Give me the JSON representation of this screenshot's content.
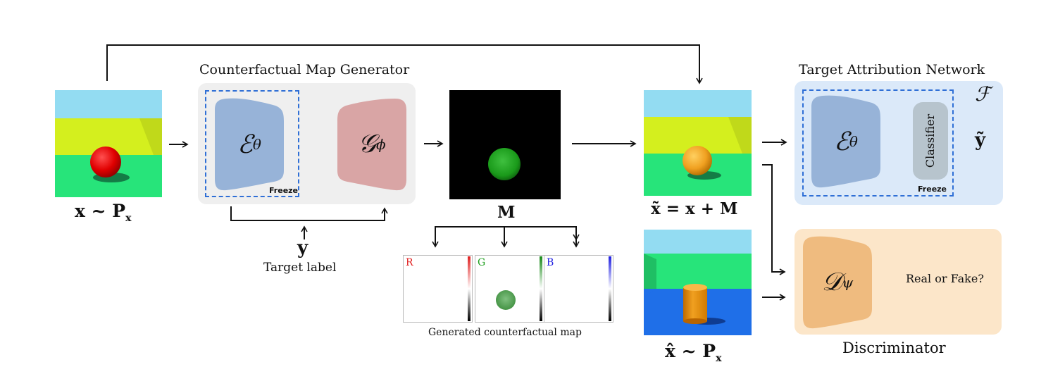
{
  "input": {
    "label": "x ~ P",
    "sub": "x"
  },
  "generator": {
    "title": "Counterfactual Map Generator",
    "encoder": {
      "symbol": "ℰ",
      "sub": "θ"
    },
    "decoder": {
      "symbol": "𝒢",
      "sub": "ϕ"
    },
    "freeze": "Freeze"
  },
  "target": {
    "symbol": "y",
    "label": "Target label"
  },
  "map": {
    "label": "M",
    "channels": [
      {
        "name": "R",
        "color": "#e02020"
      },
      {
        "name": "G",
        "color": "#20a020"
      },
      {
        "name": "B",
        "color": "#2020e0"
      }
    ],
    "caption": "Generated counterfactual map"
  },
  "counterfactual": {
    "label": "x̃ = x + M"
  },
  "real": {
    "label": "x̂ ~ P",
    "sub": "x"
  },
  "tan": {
    "title": "Target Attribution Network",
    "symbol": "ℱ",
    "encoder": {
      "symbol": "ℰ",
      "sub": "θ"
    },
    "classifier": "Classifier",
    "freeze": "Freeze",
    "output": "ỹ"
  },
  "disc": {
    "symbol": "𝒟",
    "sub": "ψ",
    "output": "Real or Fake?",
    "title": "Discriminator"
  },
  "colors": {
    "generator_bg": "#efefef",
    "tan_bg": "#dbe9f9",
    "disc_bg": "#fce6c9",
    "encoder": "#97b3d8",
    "decoder": "#d9a5a5",
    "discriminator": "#efbb7f",
    "classifier": "#b7c4cd",
    "dashed": "#2f6fd6"
  }
}
